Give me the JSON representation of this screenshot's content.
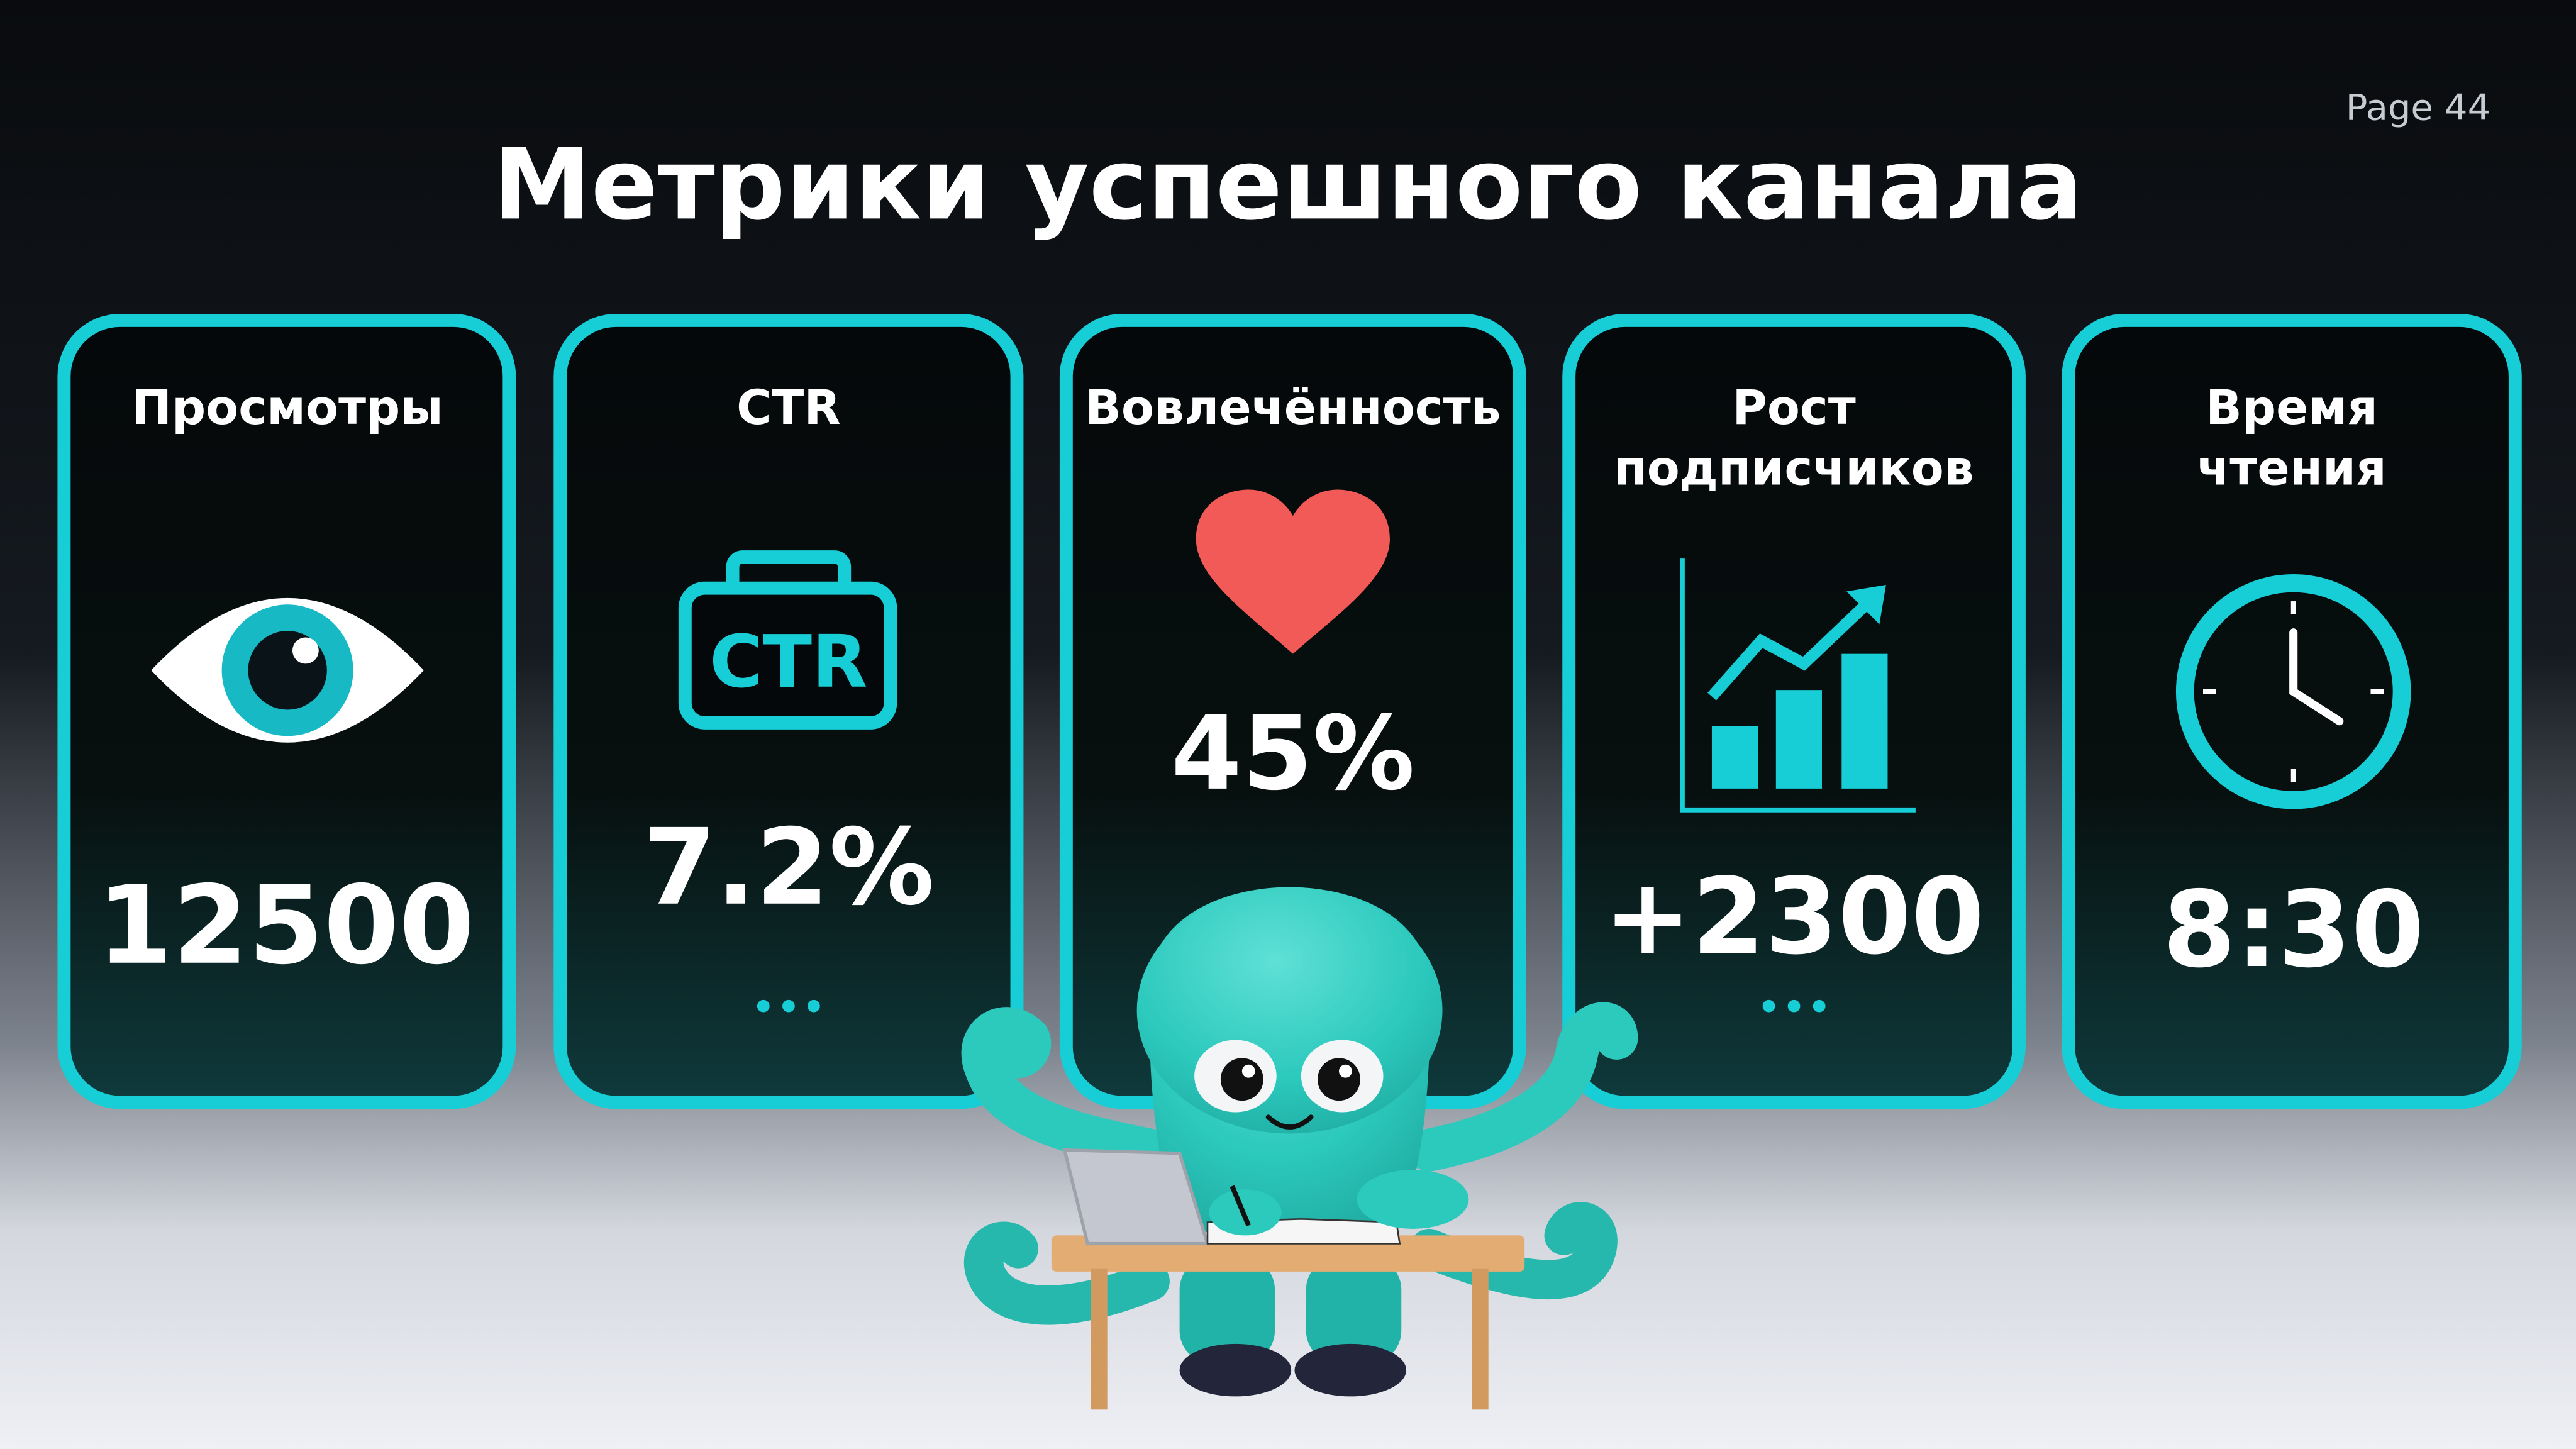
{
  "slide": {
    "title": "Метрики успешного канала",
    "page_label": "Page 44"
  },
  "colors": {
    "accent": "#17cdd6",
    "heart": "#f25a58",
    "octopus": "#2cc9bd"
  },
  "cards": [
    {
      "label_lines": [
        "Просмотры"
      ],
      "icon": "eye-icon",
      "value": "12500"
    },
    {
      "label_lines": [
        "CTR"
      ],
      "icon": "ctr-badge-icon",
      "icon_text": "CTR",
      "value": "7.2%",
      "more": "•••"
    },
    {
      "label_lines": [
        "Вовлечённость"
      ],
      "icon": "heart-icon",
      "value": "45%"
    },
    {
      "label_lines": [
        "Рост",
        "подписчиков"
      ],
      "icon": "bar-chart-growth-icon",
      "value": "+2300",
      "more": "•••"
    },
    {
      "label_lines": [
        "Время",
        "чтения"
      ],
      "icon": "clock-icon",
      "value": "8:30"
    }
  ],
  "illustration": {
    "name": "octopus-mascot-at-desk"
  }
}
